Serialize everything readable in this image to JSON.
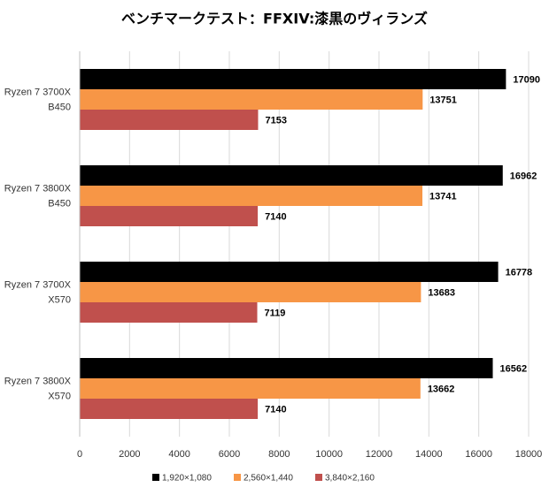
{
  "chart_data": {
    "type": "hbar",
    "title": "ベンチマークテスト：FFXIV:漆黒のヴィランズ",
    "categories": [
      [
        "Ryzen 7 3700X",
        "B450"
      ],
      [
        "Ryzen 7 3800X",
        "B450"
      ],
      [
        "Ryzen 7 3700X",
        "X570"
      ],
      [
        "Ryzen 7 3800X",
        "X570"
      ]
    ],
    "series": [
      {
        "name": "1,920×1,080",
        "color": "#000000",
        "values": [
          17090,
          16962,
          16778,
          16562
        ]
      },
      {
        "name": "2,560×1,440",
        "color": "#f79646",
        "values": [
          13751,
          13741,
          13683,
          13662
        ]
      },
      {
        "name": "3,840×2,160",
        "color": "#c0504d",
        "values": [
          7153,
          7140,
          7119,
          7140
        ]
      }
    ],
    "xlim": [
      0,
      18000
    ],
    "xticks": [
      0,
      2000,
      4000,
      6000,
      8000,
      10000,
      12000,
      14000,
      16000,
      18000
    ],
    "grid": true,
    "legend": "bottom"
  }
}
